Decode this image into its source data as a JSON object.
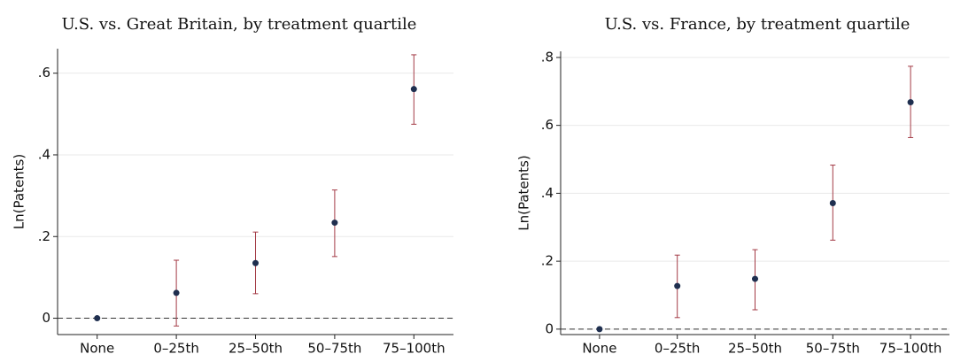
{
  "chart_data": [
    {
      "type": "errorbar",
      "title": "U.S. vs. Great Britain, by treatment quartile",
      "y_label": "Ln(Patents)",
      "categories": [
        "None",
        "0–25th",
        "25–50th",
        "50–75th",
        "75–100th"
      ],
      "values": [
        0,
        0.062,
        0.135,
        0.234,
        0.561
      ],
      "lower": [
        0,
        -0.019,
        0.06,
        0.151,
        0.475
      ],
      "upper": [
        0,
        0.142,
        0.211,
        0.314,
        0.645
      ],
      "color": "#1f2f4f",
      "error_color": "#a33a45",
      "ylim": [
        -0.04,
        0.66
      ],
      "yticks": [
        0,
        {
          "value": 0.2,
          "label": ".2"
        },
        {
          "value": 0.4,
          "label": ".4"
        },
        {
          "value": 0.6,
          "label": ".6"
        }
      ],
      "grid": true,
      "reference_line": 0
    },
    {
      "type": "errorbar",
      "title": "U.S. vs. France, by treatment quartile",
      "y_label": "Ln(Patents)",
      "categories": [
        "None",
        "0–25th",
        "25–50th",
        "50–75th",
        "75–100th"
      ],
      "values": [
        0,
        0.127,
        0.148,
        0.371,
        0.668
      ],
      "lower": [
        0,
        0.034,
        0.057,
        0.262,
        0.564
      ],
      "upper": [
        0,
        0.218,
        0.234,
        0.483,
        0.774
      ],
      "color": "#1f2f4f",
      "error_color": "#a33a45",
      "ylim": [
        -0.016,
        0.818
      ],
      "yticks": [
        0,
        {
          "value": 0.2,
          "label": ".2"
        },
        {
          "value": 0.4,
          "label": ".4"
        },
        {
          "value": 0.6,
          "label": ".6"
        },
        {
          "value": 0.8,
          "label": ".8"
        }
      ],
      "grid": true,
      "reference_line": 0
    }
  ]
}
